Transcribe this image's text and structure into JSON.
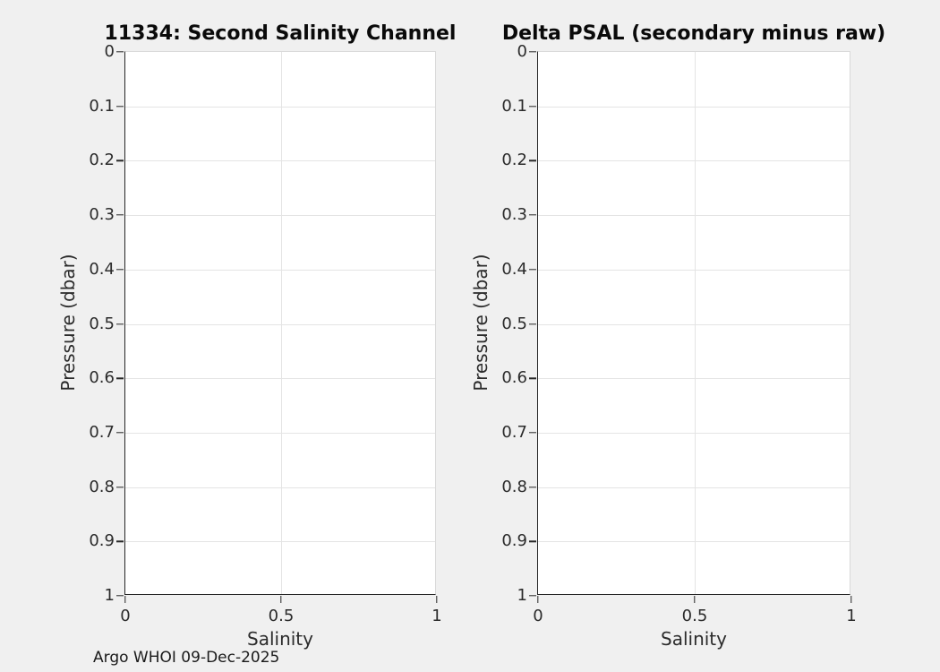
{
  "figure": {
    "footer": "Argo WHOI 09-Dec-2025",
    "background": "#f0f0f0"
  },
  "colors": {
    "plot_background": "#ffffff",
    "axis_line": "#262626",
    "spine_light": "#d9d9d9",
    "gridline": "#e4e4e4",
    "title_text": "#0a0a0a",
    "label_text": "#2b2b2b"
  },
  "chart_data": [
    {
      "type": "scatter",
      "title": "11334: Second Salinity Channel",
      "xlabel": "Salinity",
      "ylabel": "Pressure (dbar)",
      "xlim": [
        0,
        1
      ],
      "ylim": [
        0,
        1
      ],
      "ydir": "reverse",
      "xticks": [
        0,
        0.5,
        1
      ],
      "xtick_labels": [
        "0",
        "0.5",
        "1"
      ],
      "yticks": [
        0,
        0.1,
        0.2,
        0.3,
        0.4,
        0.5,
        0.6,
        0.7,
        0.8,
        0.9,
        1
      ],
      "ytick_labels": [
        "0",
        "0.1",
        "0.2",
        "0.3",
        "0.4",
        "0.5",
        "0.6",
        "0.7",
        "0.8",
        "0.9",
        "1"
      ],
      "grid": true,
      "legend": null,
      "series": []
    },
    {
      "type": "scatter",
      "title": "Delta PSAL (secondary minus raw)",
      "xlabel": "Salinity",
      "ylabel": "Pressure (dbar)",
      "xlim": [
        0,
        1
      ],
      "ylim": [
        0,
        1
      ],
      "ydir": "reverse",
      "xticks": [
        0,
        0.5,
        1
      ],
      "xtick_labels": [
        "0",
        "0.5",
        "1"
      ],
      "yticks": [
        0,
        0.1,
        0.2,
        0.3,
        0.4,
        0.5,
        0.6,
        0.7,
        0.8,
        0.9,
        1
      ],
      "ytick_labels": [
        "0",
        "0.1",
        "0.2",
        "0.3",
        "0.4",
        "0.5",
        "0.6",
        "0.7",
        "0.8",
        "0.9",
        "1"
      ],
      "grid": true,
      "legend": null,
      "series": []
    }
  ]
}
